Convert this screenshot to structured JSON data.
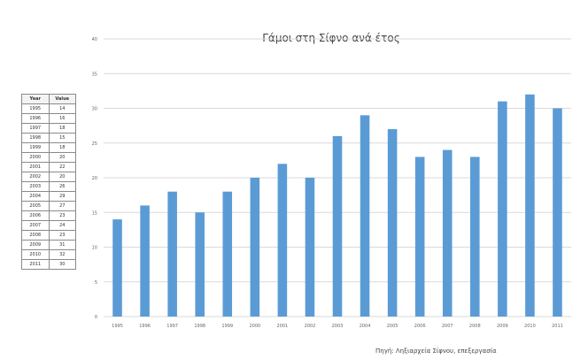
{
  "table": {
    "headers": [
      "Year",
      "Value"
    ],
    "rows": [
      [
        "1995",
        "14"
      ],
      [
        "1996",
        "16"
      ],
      [
        "1997",
        "18"
      ],
      [
        "1998",
        "15"
      ],
      [
        "1999",
        "18"
      ],
      [
        "2000",
        "20"
      ],
      [
        "2001",
        "22"
      ],
      [
        "2002",
        "20"
      ],
      [
        "2003",
        "26"
      ],
      [
        "2004",
        "29"
      ],
      [
        "2005",
        "27"
      ],
      [
        "2006",
        "23"
      ],
      [
        "2007",
        "24"
      ],
      [
        "2008",
        "23"
      ],
      [
        "2009",
        "31"
      ],
      [
        "2010",
        "32"
      ],
      [
        "2011",
        "30"
      ]
    ]
  },
  "chart_data": {
    "type": "bar",
    "title": "Γάμοι στη Σίφνο ανά έτος",
    "categories": [
      "1995",
      "1996",
      "1997",
      "1998",
      "1999",
      "2000",
      "2001",
      "2002",
      "2003",
      "2004",
      "2005",
      "2006",
      "2007",
      "2008",
      "2009",
      "2010",
      "2011"
    ],
    "values": [
      14,
      16,
      18,
      15,
      18,
      20,
      22,
      20,
      26,
      29,
      27,
      23,
      24,
      23,
      31,
      32,
      30
    ],
    "ylim": [
      0,
      40
    ],
    "yticks": [
      0,
      5,
      10,
      15,
      20,
      25,
      30,
      35,
      40
    ],
    "xlabel": "",
    "ylabel": "",
    "grid": true,
    "color": "#5b9bd5",
    "source": "Πηγή: Ληξιαρχεία Σίφνου, επεξεργασία"
  }
}
